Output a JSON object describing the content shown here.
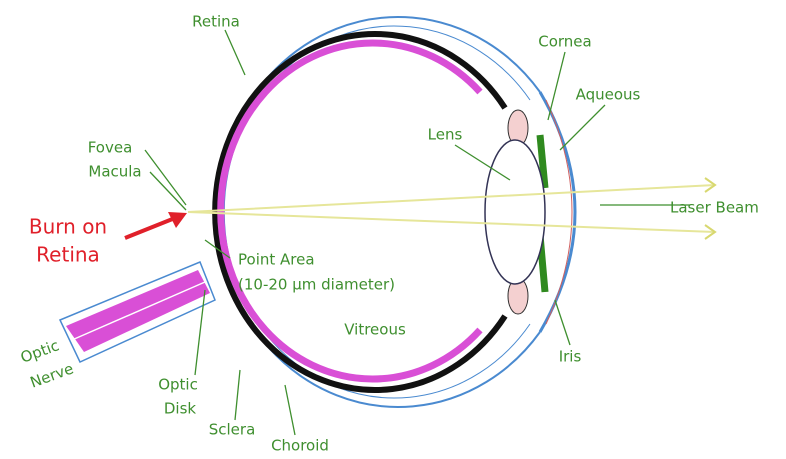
{
  "labels": [
    {
      "lines": [
        "Retina"
      ]
    },
    {
      "lines": [
        "Cornea"
      ]
    },
    {
      "lines": [
        "Aqueous"
      ]
    },
    {
      "lines": [
        "Lens"
      ]
    },
    {
      "lines": [
        "Fovea",
        "Macula"
      ]
    },
    {
      "lines": [
        "Burn on",
        "Retina"
      ]
    },
    {
      "lines": [
        "Laser Beam"
      ]
    },
    {
      "lines": [
        "Point Area",
        "(10-20 μm diameter)"
      ]
    },
    {
      "lines": [
        "Vitreous"
      ]
    },
    {
      "lines": [
        "Optic",
        "Nerve"
      ]
    },
    {
      "lines": [
        "Iris"
      ]
    },
    {
      "lines": [
        "Optic",
        "Disk"
      ]
    },
    {
      "lines": [
        "Sclera"
      ]
    },
    {
      "lines": [
        "Choroid"
      ]
    }
  ]
}
